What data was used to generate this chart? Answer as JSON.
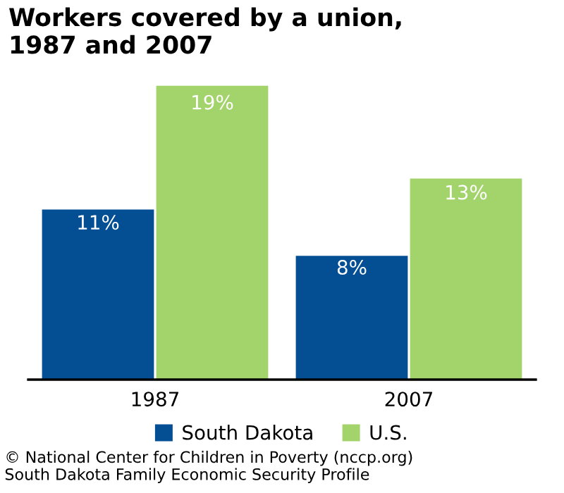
{
  "chart_data": {
    "type": "bar",
    "title": "Workers covered by a union,\n1987 and 2007",
    "categories": [
      "1987",
      "2007"
    ],
    "series": [
      {
        "name": "South Dakota",
        "color": "#044f94",
        "values": [
          11,
          8
        ],
        "value_labels": [
          "11%",
          "8%"
        ]
      },
      {
        "name": "U.S.",
        "color": "#a3d36b",
        "values": [
          19,
          13
        ],
        "value_labels": [
          "19%",
          "13%"
        ]
      }
    ],
    "legend": "bottom",
    "grid": false,
    "tick_labels": "x",
    "annotations": [
      "© National Center for Children in Poverty (nccp.org)",
      "South Dakota Family Economic Security Profile"
    ]
  }
}
